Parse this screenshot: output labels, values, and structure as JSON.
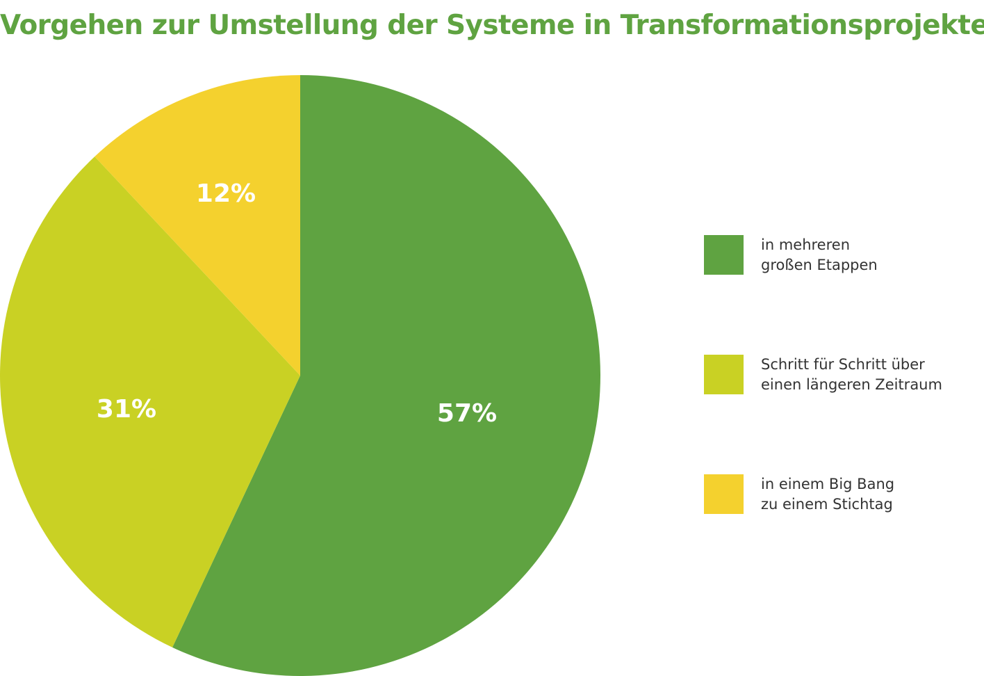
{
  "chart_data": {
    "type": "pie",
    "title": "Vorgehen zur Umstellung der Systeme in Transformationsprojekten",
    "slices": [
      {
        "name_lines": [
          "in mehreren",
          "großen Etappen"
        ],
        "value": 57,
        "label": "57%",
        "color": "#5fa341"
      },
      {
        "name_lines": [
          "Schritt für Schritt über",
          "einen längeren Zeitraum"
        ],
        "value": 31,
        "label": "31%",
        "color": "#c9d124"
      },
      {
        "name_lines": [
          "in einem Big Bang",
          "zu einem Stichtag"
        ],
        "value": 12,
        "label": "12%",
        "color": "#f4d12e"
      }
    ],
    "legend_position": "right"
  },
  "colors": {
    "title": "#5fa341",
    "label_text": "#ffffff",
    "legend_text": "#333333"
  }
}
